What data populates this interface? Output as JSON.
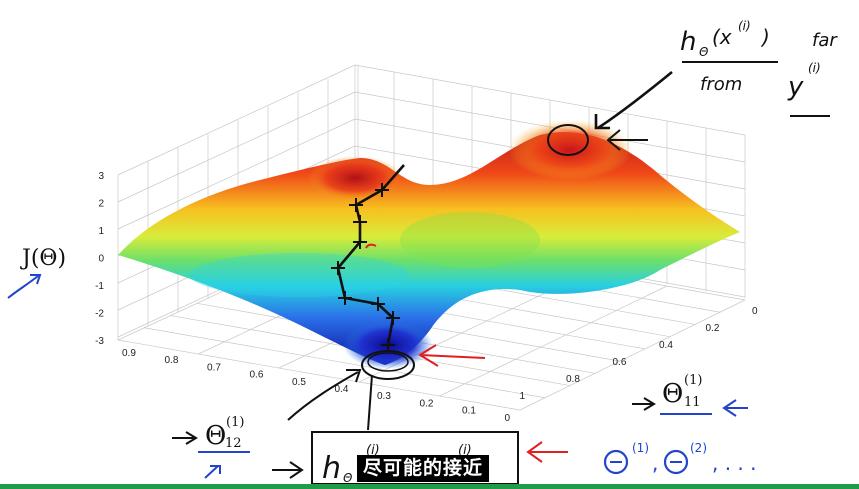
{
  "chart_data": {
    "type": "surface3d",
    "title": "",
    "zlabel": "J(Θ)",
    "xlabel": "Θ(1)11",
    "ylabel": "Θ(1)12",
    "z_ticks": [
      "3",
      "2",
      "1",
      "0",
      "-1",
      "-2",
      "-3"
    ],
    "x_ticks": [
      "0",
      "0.2",
      "0.4",
      "0.6",
      "0.8",
      "1"
    ],
    "y_ticks": [
      "0.9",
      "0.8",
      "0.7",
      "0.6",
      "0.5",
      "0.4",
      "0.3",
      "0.2",
      "0.1",
      "0"
    ],
    "zlim": [
      -3,
      3
    ],
    "descent_path_points": 9,
    "colors": {
      "high": "#c0141a",
      "mid": "#f0e040",
      "low": "#0c12a0",
      "annotation_arrow": "#e02020",
      "pen": "#111111",
      "blue_pen": "#2244cc"
    }
  },
  "annotations": {
    "top_numerator": "h",
    "top_numerator_sub": "Θ",
    "top_numerator_arg": "(x",
    "top_numerator_sup": "(i)",
    "top_numerator_close": ")",
    "top_for": "far",
    "top_from": "from",
    "top_y": "y",
    "top_y_sup": "(i)",
    "bottom_box_h": "h",
    "bottom_box_sub": "Θ",
    "bottom_box_sup": "(i)",
    "bottom_box_sup2": "(i)",
    "theta_seq": "Θ",
    "theta_seq_sup": "(1)",
    "theta_seq_sep": ",",
    "theta_seq_sup2": "(2)",
    "theta_seq_dots": ", . . .",
    "theta11_base": "Θ",
    "theta11_sup": "(1)",
    "theta11_sub": "11",
    "theta12_base": "Θ",
    "theta12_sup": "(1)",
    "theta12_sub": "12",
    "j_theta": "J(Θ)"
  },
  "subtitle": "尽可能的接近"
}
